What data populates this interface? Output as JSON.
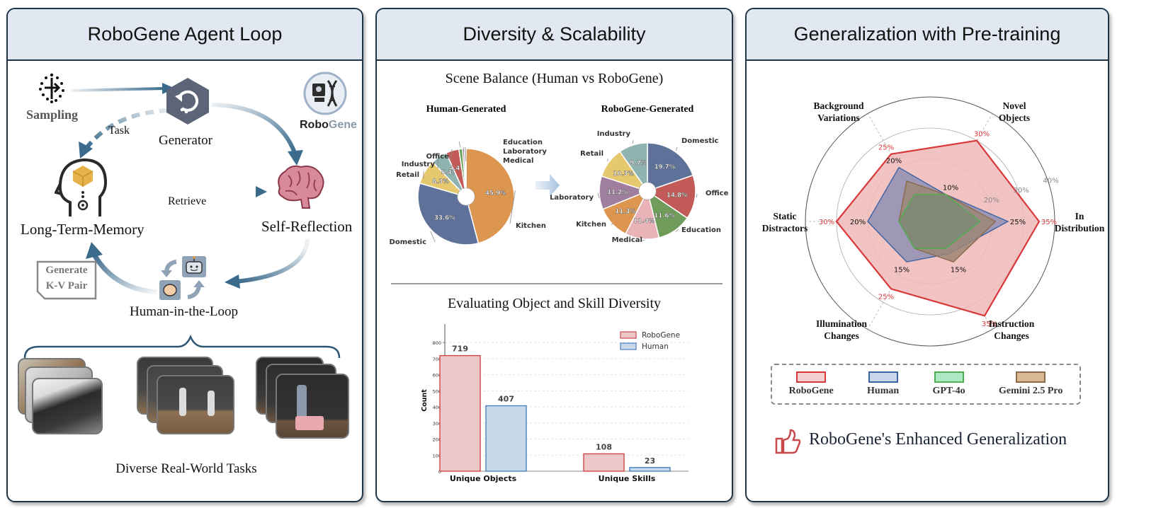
{
  "panels": {
    "left": {
      "title": "RoboGene Agent Loop",
      "nodes": {
        "sampling": "Sampling",
        "generator": "Generator",
        "long_term_memory": "Long-Term-Memory",
        "self_reflection": "Self-Reflection",
        "human_in_the_loop": "Human-in-the-Loop"
      },
      "edges": {
        "task": "Task",
        "retrieve": "Retrieve"
      },
      "kv_note": [
        "Generate",
        "K-V Pair"
      ],
      "logo": {
        "bold": "Robo",
        "light": "Gene"
      },
      "footer": "Diverse Real-World Tasks",
      "photo_stacks": [
        "office-desk-robot-arm",
        "dual-arm-lab-bench",
        "ur-arm-with-basket"
      ]
    },
    "middle": {
      "title": "Diversity & Scalability",
      "scene_title": "Scene Balance (Human vs RoboGene)",
      "bar_title": "Evaluating Object and Skill Diversity"
    },
    "right": {
      "title": "Generalization with Pre-training",
      "conclusion": "RoboGene's Enhanced Generalization"
    }
  },
  "colors": {
    "accent_dark": "#1e3447",
    "header_bg": "#e1e8f1",
    "arrow_blue": "#3a6a8c",
    "robogene_red": "#d9383a",
    "human_blue": "#3b62a3",
    "gpt_green": "#4cb050",
    "gemini_brown": "#8c6a4a"
  },
  "chart_data": [
    {
      "type": "pie",
      "title": "Human-Generated",
      "categories": [
        "Kitchen",
        "Domestic",
        "Retail",
        "Industry",
        "Office",
        "Education",
        "Laboratory",
        "Medical"
      ],
      "values": [
        45.9,
        33.6,
        8.3,
        5.4,
        4.4,
        1.2,
        0.7,
        0.5
      ],
      "labels_shown": [
        "45.9%",
        "33.6%",
        "8.3%",
        "5.4%",
        "4.4%",
        "",
        "",
        ""
      ],
      "colors": [
        "#dd9650",
        "#5e7299",
        "#e6c96e",
        "#8fb3b0",
        "#c25b58",
        "#6aa35a",
        "#a07e9e",
        "#e7a9b0"
      ]
    },
    {
      "type": "pie",
      "title": "RoboGene-Generated",
      "categories": [
        "Domestic",
        "Office",
        "Education",
        "Medical",
        "Kitchen",
        "Laboratory",
        "Retail",
        "Industry"
      ],
      "values": [
        19.7,
        14.8,
        11.6,
        11.4,
        11.3,
        11.2,
        10.3,
        9.7
      ],
      "labels_shown": [
        "19.7%",
        "14.8%",
        "11.6%",
        "11.4%",
        "11.3%",
        "11.2%",
        "10.3%",
        "9.7%"
      ],
      "colors": [
        "#5e7299",
        "#c25b58",
        "#6f9c5a",
        "#e9b3b8",
        "#dd9650",
        "#a07e9e",
        "#e6c96e",
        "#8fb3b0"
      ]
    },
    {
      "type": "bar",
      "title": "Evaluating Object and Skill Diversity",
      "categories": [
        "Unique Objects",
        "Unique Skills"
      ],
      "series": [
        {
          "name": "RoboGene",
          "values": [
            719,
            108
          ],
          "fill": "#ecc8c8",
          "stroke": "#d0464a"
        },
        {
          "name": "Human",
          "values": [
            407,
            23
          ],
          "fill": "#c8d9ea",
          "stroke": "#4a82c0"
        }
      ],
      "xlabel": "",
      "ylabel": "Count",
      "ylim": [
        0,
        880
      ],
      "yticks": [
        0,
        100,
        200,
        300,
        400,
        500,
        600,
        700,
        800
      ],
      "grid": true,
      "legend": "top-right"
    },
    {
      "type": "radar",
      "axes": [
        "In Distribution",
        "Novel Objects",
        "Background Variations",
        "Static Distractors",
        "Illumination Changes",
        "Instruction Changes"
      ],
      "rlim": [
        0,
        40
      ],
      "rticks": [
        "10%",
        "20%",
        "30%",
        "40%"
      ],
      "series": [
        {
          "name": "RoboGene",
          "values": [
            35,
            30,
            25,
            30,
            25,
            35
          ],
          "labels": [
            "35%",
            "30%",
            "25%",
            "30%",
            "25%",
            "35%"
          ],
          "fill": "#f0b8b8",
          "stroke": "#d9383a",
          "legend_fill": "#f6d0d0"
        },
        {
          "name": "Human",
          "values": [
            25,
            10,
            20,
            20,
            15,
            12
          ],
          "labels": [
            "25%",
            "10%",
            "20%",
            "20%",
            "15%",
            ""
          ],
          "fill": "#8f90b4",
          "stroke": "#3b62a3",
          "legend_fill": "#c9d7ea"
        },
        {
          "name": "Gemini 2.5 Pro",
          "values": [
            21,
            10,
            15,
            10,
            10,
            15
          ],
          "labels": [
            "",
            "",
            "",
            "",
            "",
            "15%"
          ],
          "fill": "#9b8676",
          "stroke": "#8c6a4a",
          "legend_fill": "#d8b993"
        },
        {
          "name": "GPT-4o",
          "values": [
            16,
            10,
            10,
            10,
            10,
            10
          ],
          "labels": [
            "",
            "",
            "",
            "",
            "",
            ""
          ],
          "fill": "#7f8a75",
          "stroke": "#4cb050",
          "legend_fill": "#ace9c2"
        }
      ],
      "legend": "bottom"
    }
  ]
}
